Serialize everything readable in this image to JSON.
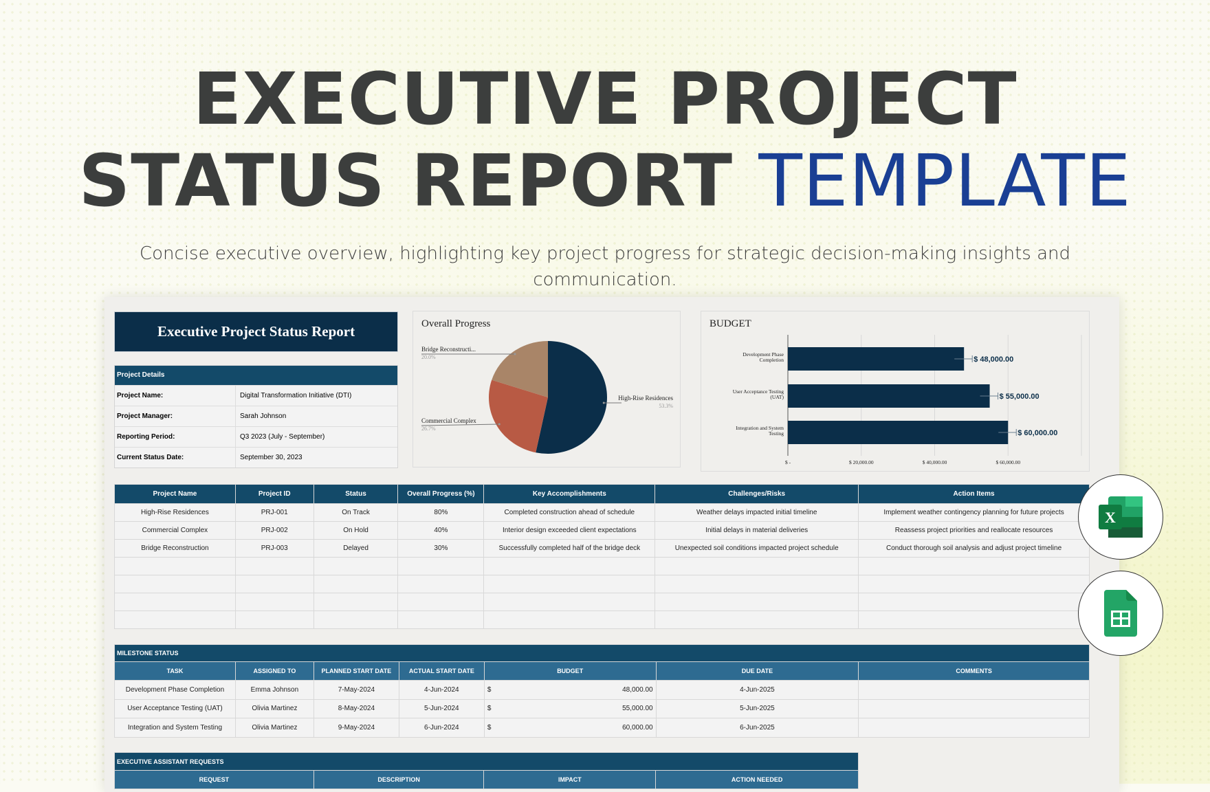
{
  "hero": {
    "line1": "EXECUTIVE PROJECT",
    "line2_main": "STATUS REPORT",
    "line2_accent": "TEMPLATE",
    "subtitle": "Concise executive overview, highlighting key project progress for strategic decision-making insights and communication."
  },
  "report": {
    "title": "Executive Project Status Report"
  },
  "details": {
    "header": "Project Details",
    "rows": [
      {
        "label": "Project Name:",
        "value": "Digital Transformation Initiative (DTI)"
      },
      {
        "label": "Project Manager:",
        "value": "Sarah Johnson"
      },
      {
        "label": "Reporting Period:",
        "value": "Q3 2023 (July - September)"
      },
      {
        "label": "Current Status Date:",
        "value": "September 30, 2023"
      }
    ]
  },
  "chart_data": [
    {
      "type": "pie",
      "title": "Overall Progress",
      "labels": [
        "High-Rise Residences",
        "Commercial Complex",
        "Bridge Reconstructi..."
      ],
      "values": [
        53.3,
        26.7,
        20.0
      ],
      "value_labels": [
        "53.3%",
        "26.7%",
        "20.0%"
      ],
      "colors": [
        "#0b2e49",
        "#b85a44",
        "#a98568"
      ]
    },
    {
      "type": "bar",
      "orientation": "horizontal",
      "title": "BUDGET",
      "categories": [
        [
          "Development Phase",
          "Completion"
        ],
        [
          "User Acceptance Testing",
          "(UAT)"
        ],
        [
          "Integration and System",
          "Testing"
        ]
      ],
      "values": [
        48000,
        55000,
        60000
      ],
      "data_labels": [
        "$ 48,000.00",
        "$ 55,000.00",
        "$ 60,000.00"
      ],
      "xlim": [
        0,
        80000
      ],
      "xticks": [
        0,
        20000,
        40000,
        60000
      ],
      "xtick_labels": [
        "$ -",
        "$ 20,000.00",
        "$ 40,000.00",
        "$ 60,000.00"
      ],
      "grid": true,
      "color": "#0b2e49"
    }
  ],
  "projects": {
    "headers": [
      "Project Name",
      "Project ID",
      "Status",
      "Overall Progress (%)",
      "Key Accomplishments",
      "Challenges/Risks",
      "Action Items"
    ],
    "rows": [
      [
        "High-Rise Residences",
        "PRJ-001",
        "On Track",
        "80%",
        "Completed construction ahead of schedule",
        "Weather delays impacted initial timeline",
        "Implement weather contingency planning for future projects"
      ],
      [
        "Commercial Complex",
        "PRJ-002",
        "On Hold",
        "40%",
        "Interior design exceeded client expectations",
        "Initial delays in material deliveries",
        "Reassess project priorities and reallocate resources"
      ],
      [
        "Bridge Reconstruction",
        "PRJ-003",
        "Delayed",
        "30%",
        "Successfully completed half of the bridge deck",
        "Unexpected soil conditions impacted project schedule",
        "Conduct thorough soil analysis and adjust project timeline"
      ],
      [
        "",
        "",
        "",
        "",
        "",
        "",
        ""
      ],
      [
        "",
        "",
        "",
        "",
        "",
        "",
        ""
      ],
      [
        "",
        "",
        "",
        "",
        "",
        "",
        ""
      ],
      [
        "",
        "",
        "",
        "",
        "",
        "",
        ""
      ]
    ]
  },
  "milestones": {
    "title": "MILESTONE STATUS",
    "headers": [
      "TASK",
      "ASSIGNED TO",
      "PLANNED START DATE",
      "ACTUAL START DATE",
      "BUDGET",
      "DUE DATE",
      "COMMENTS"
    ],
    "rows": [
      {
        "task": "Development Phase Completion",
        "assigned": "Emma Johnson",
        "planned": "7-May-2024",
        "actual": "4-Jun-2024",
        "currency": "$",
        "budget": "48,000.00",
        "due": "4-Jun-2025",
        "comments": ""
      },
      {
        "task": "User Acceptance Testing (UAT)",
        "assigned": "Olivia Martinez",
        "planned": "8-May-2024",
        "actual": "5-Jun-2024",
        "currency": "$",
        "budget": "55,000.00",
        "due": "5-Jun-2025",
        "comments": ""
      },
      {
        "task": "Integration and System Testing",
        "assigned": "Olivia Martinez",
        "planned": "9-May-2024",
        "actual": "6-Jun-2024",
        "currency": "$",
        "budget": "60,000.00",
        "due": "6-Jun-2025",
        "comments": ""
      }
    ]
  },
  "requests": {
    "title": "EXECUTIVE ASSISTANT REQUESTS",
    "headers": [
      "REQUEST",
      "DESCRIPTION",
      "IMPACT",
      "ACTION NEEDED"
    ]
  },
  "apps": [
    {
      "icon": "excel-icon",
      "letter": "X",
      "color": "#107c41"
    },
    {
      "icon": "google-sheets-icon",
      "color": "#23a566"
    }
  ]
}
